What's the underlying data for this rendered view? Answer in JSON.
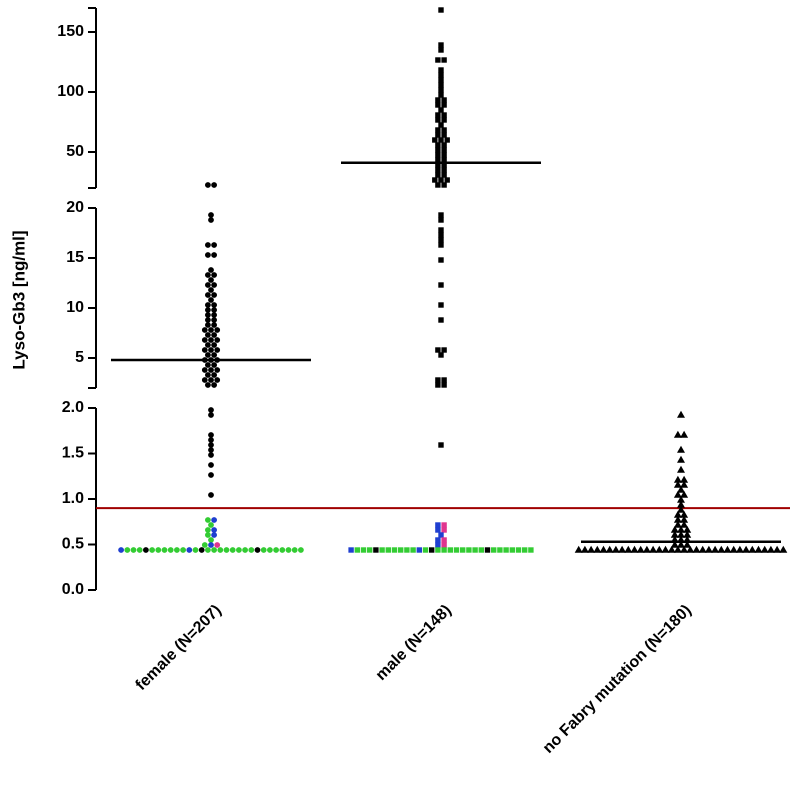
{
  "chart_data": {
    "type": "scatter",
    "subtype": "dot-plot-with-broken-y-axis",
    "title": "",
    "xlabel": "",
    "ylabel": "Lyso-Gb3 [ng/ml]",
    "categories": [
      "female (N=207)",
      "male (N=148)",
      "no Fabry mutation (N=180)"
    ],
    "y_axis_segments": [
      {
        "range": [
          0.0,
          2.0
        ],
        "ticks": [
          0.0,
          0.5,
          1.0,
          1.5,
          2.0
        ],
        "tick_labels": [
          "0.0",
          "0.5",
          "1.0",
          "1.5",
          "2.0"
        ]
      },
      {
        "range": [
          2,
          20
        ],
        "ticks": [
          5,
          10,
          15,
          20
        ],
        "tick_labels": [
          "5",
          "10",
          "15",
          "20"
        ]
      },
      {
        "range": [
          20,
          170
        ],
        "ticks": [
          50,
          100,
          150
        ],
        "tick_labels": [
          "50",
          "100",
          "150"
        ]
      }
    ],
    "threshold": {
      "value": 0.9,
      "color": "#a00000"
    },
    "grid": false,
    "legend": "none",
    "marker_color_default": "#000000",
    "marker_colors_low": [
      "#33cc33",
      "#1f3fd0",
      "#e0358f",
      "#000000"
    ],
    "series": [
      {
        "name": "female (N=207)",
        "marker": "circle",
        "median": 4.8,
        "values": [
          21.5,
          21.3,
          19.2,
          18.8,
          16.5,
          16.3,
          15.5,
          15.2,
          14.0,
          13.5,
          13.2,
          12.8,
          12.5,
          12.2,
          11.8,
          11.5,
          11.2,
          10.8,
          10.5,
          10.2,
          10.0,
          9.8,
          9.5,
          9.2,
          9.0,
          8.8,
          8.5,
          8.2,
          8.0,
          7.8,
          7.6,
          7.4,
          7.2,
          7.0,
          6.8,
          6.6,
          6.4,
          6.2,
          6.0,
          5.8,
          5.6,
          5.4,
          5.2,
          5.0,
          4.8,
          4.6,
          4.4,
          4.2,
          4.0,
          3.8,
          3.6,
          3.4,
          3.2,
          3.0,
          2.8,
          2.6,
          2.4,
          2.2,
          1.98,
          1.93,
          1.72,
          1.65,
          1.6,
          1.56,
          1.5,
          1.35,
          1.25,
          1.02,
          0.78,
          0.77,
          0.7,
          0.68,
          0.66,
          0.62,
          0.58,
          0.55,
          0.52,
          0.5,
          0.48,
          0.46,
          0.45,
          0.45,
          0.45,
          0.45,
          0.45,
          0.45,
          0.45,
          0.45,
          0.45,
          0.45
        ]
      },
      {
        "name": "male (N=148)",
        "marker": "square",
        "median": 41,
        "values": [
          170,
          140,
          135,
          126,
          125,
          120,
          115,
          110,
          105,
          100,
          98,
          95,
          92,
          90,
          88,
          85,
          82,
          80,
          78,
          75,
          72,
          70,
          68,
          66,
          64,
          62,
          60,
          58,
          56,
          54,
          52,
          50,
          48,
          46,
          44,
          42,
          40,
          38,
          36,
          34,
          32,
          30,
          28,
          26,
          25,
          24,
          22,
          19.5,
          19.0,
          18.0,
          17.5,
          17.0,
          16.5,
          15.0,
          12.5,
          10.5,
          9.0,
          6.0,
          5.8,
          5.5,
          2.8,
          2.6,
          2.5,
          2.3,
          1.6,
          0.72,
          0.7,
          0.68,
          0.65,
          0.6,
          0.57,
          0.53,
          0.5,
          0.48,
          0.45,
          0.45,
          0.45,
          0.45,
          0.45,
          0.45,
          0.45
        ]
      },
      {
        "name": "no Fabry mutation (N=180)",
        "marker": "triangle",
        "median": 0.53,
        "values": [
          1.93,
          1.72,
          1.68,
          1.55,
          1.43,
          1.3,
          1.2,
          1.2,
          1.18,
          1.13,
          1.1,
          1.05,
          1.02,
          0.98,
          0.92,
          0.9,
          0.82,
          0.8,
          0.78,
          0.75,
          0.72,
          0.7,
          0.68,
          0.66,
          0.64,
          0.62,
          0.6,
          0.58,
          0.56,
          0.55,
          0.53,
          0.52,
          0.5,
          0.48,
          0.46,
          0.45,
          0.44,
          0.44,
          0.44,
          0.44,
          0.44,
          0.44,
          0.44,
          0.44,
          0.44
        ]
      }
    ]
  }
}
